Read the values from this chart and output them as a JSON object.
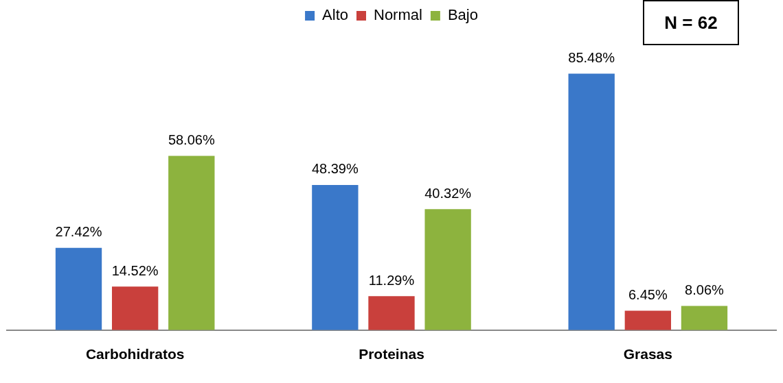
{
  "chart_data": {
    "type": "bar",
    "categories": [
      "Carbohidratos",
      "Proteinas",
      "Grasas"
    ],
    "series": [
      {
        "name": "Alto",
        "color": "#3a78c9",
        "values": [
          27.42,
          48.39,
          85.48
        ],
        "value_labels": [
          "27.42%",
          "48.39%",
          "85.48%"
        ]
      },
      {
        "name": "Normal",
        "color": "#c9403c",
        "values": [
          14.52,
          11.29,
          6.45
        ],
        "value_labels": [
          "14.52%",
          "11.29%",
          "6.45%"
        ]
      },
      {
        "name": "Bajo",
        "color": "#8db33e",
        "values": [
          58.06,
          40.32,
          8.06
        ],
        "value_labels": [
          "58.06%",
          "40.32%",
          "8.06%"
        ]
      }
    ],
    "legend": "top",
    "grid": false,
    "annotations": [
      "N = 62"
    ]
  }
}
